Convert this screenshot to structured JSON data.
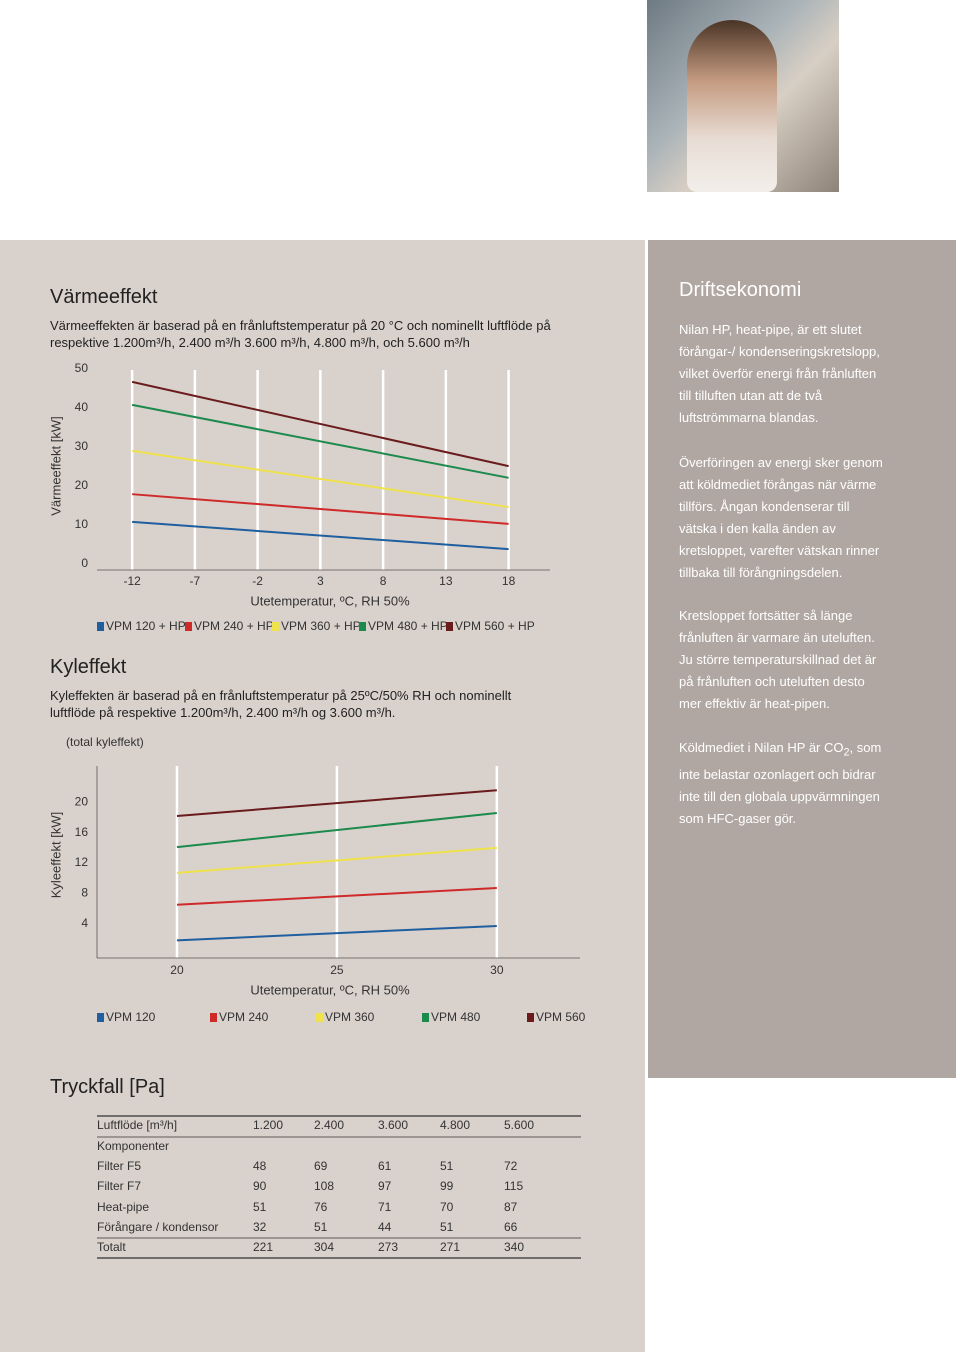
{
  "chart_data": [
    {
      "type": "line",
      "title": "Värmeeffekt",
      "subtitle": "Värmeeffekten är baserad på en frånluftstemperatur på 20 °C och nominellt luftflöde på respektive 1.200m³/h, 2.400 m³/h 3.600 m³/h, 4.800 m³/h, och 5.600 m³/h",
      "y_label": "Värmeeffekt [kW]",
      "x_label": "Utetemperatur, ºC, RH 50%",
      "x": [
        -12,
        18
      ],
      "series": [
        {
          "name": "VPM 120 + HP",
          "color": "#1f5f9f",
          "values": [
            10.8,
            3.8
          ]
        },
        {
          "name": "VPM 240 + HP",
          "color": "#cf2a2a",
          "values": [
            17.9,
            10.3
          ]
        },
        {
          "name": "VPM 360 + HP",
          "color": "#efe24a",
          "values": [
            29.0,
            14.6
          ]
        },
        {
          "name": "VPM 480 + HP",
          "color": "#1c8a4c",
          "values": [
            40.8,
            22.1
          ]
        },
        {
          "name": "VPM 560 + HP",
          "color": "#6a1b1b",
          "values": [
            46.7,
            25.1
          ]
        }
      ],
      "xlim": [
        -14.8,
        21.3
      ],
      "xticks": [
        -12,
        -7,
        -2,
        3,
        8,
        13,
        18
      ],
      "ylim": [
        0,
        50
      ],
      "yticks": [
        50,
        40,
        30,
        20,
        10,
        0
      ],
      "grid": true
    },
    {
      "type": "line",
      "title": "Kyleffekt",
      "subtitle": "Kyleffekten är baserad på en frånluftstemperatur på 25ºC/50% RH och nominellt luftflöde på respektive 1.200m³/h, 2.400 m³/h og 3.600 m³/h.",
      "annotation": "(total kyleffekt)",
      "y_label": "Kyleeffekt [kW]",
      "x_label": "Utetemperatur, ºC, RH 50%",
      "x": [
        20,
        30
      ],
      "series": [
        {
          "name": "VPM 120",
          "color": "#1f5f9f",
          "values": [
            1.8,
            3.7
          ]
        },
        {
          "name": "VPM 240",
          "color": "#cf2a2a",
          "values": [
            6.5,
            8.7
          ]
        },
        {
          "name": "VPM 360",
          "color": "#efe24a",
          "values": [
            10.7,
            14.0
          ]
        },
        {
          "name": "VPM 480",
          "color": "#1c8a4c",
          "values": [
            14.1,
            18.6
          ]
        },
        {
          "name": "VPM 560",
          "color": "#6a1b1b",
          "values": [
            18.2,
            21.6
          ]
        }
      ],
      "xlim": [
        17.5,
        32.6
      ],
      "xticks": [
        20,
        25,
        30
      ],
      "ylim": [
        0,
        24
      ],
      "yticks": [
        20,
        16,
        12,
        8,
        4
      ],
      "grid": true
    }
  ],
  "table": {
    "title": "Tryckfall [Pa]",
    "header": [
      "Luftflöde [m³/h]",
      "1.200",
      "2.400",
      "3.600",
      "4.800",
      "5.600"
    ],
    "section": "Komponenter",
    "rows": [
      [
        "Filter F5",
        48,
        69,
        61,
        51,
        72
      ],
      [
        "Filter  F7",
        90,
        108,
        97,
        99,
        115
      ],
      [
        "Heat-pipe",
        51,
        76,
        71,
        70,
        87
      ],
      [
        "Förångare / kondensor",
        32,
        51,
        44,
        51,
        66
      ]
    ],
    "total": [
      "Totalt",
      221,
      304,
      273,
      271,
      340
    ]
  },
  "sidebar": {
    "title": "Driftsekonomi",
    "paragraphs": [
      "Nilan HP, heat-pipe, är ett slutet förångar-/ kondenseringskretslopp, vilket överför energi från frånluften till tilluften utan att de två luftströmmarna blandas.",
      "Överföringen av energi sker genom att köldmediet förångas när värme tillförs. Ångan kondenserar till vätska i den kalla änden av kretsloppet, varefter vätskan rinner tillbaka till förångningsdelen.",
      "Kretsloppet fortsätter så länge frånluften är varmare än uteluften. Ju större temperaturskillnad det är på frånluften och uteluften desto mer effektiv är heat-pipen."
    ],
    "co2": {
      "before": "Köldmediet i Nilan HP är CO",
      "sub": "2",
      "after": ", som inte belastar ozonlagert och bidrar inte till den globala uppvärmningen som HFC-gaser gör."
    }
  }
}
